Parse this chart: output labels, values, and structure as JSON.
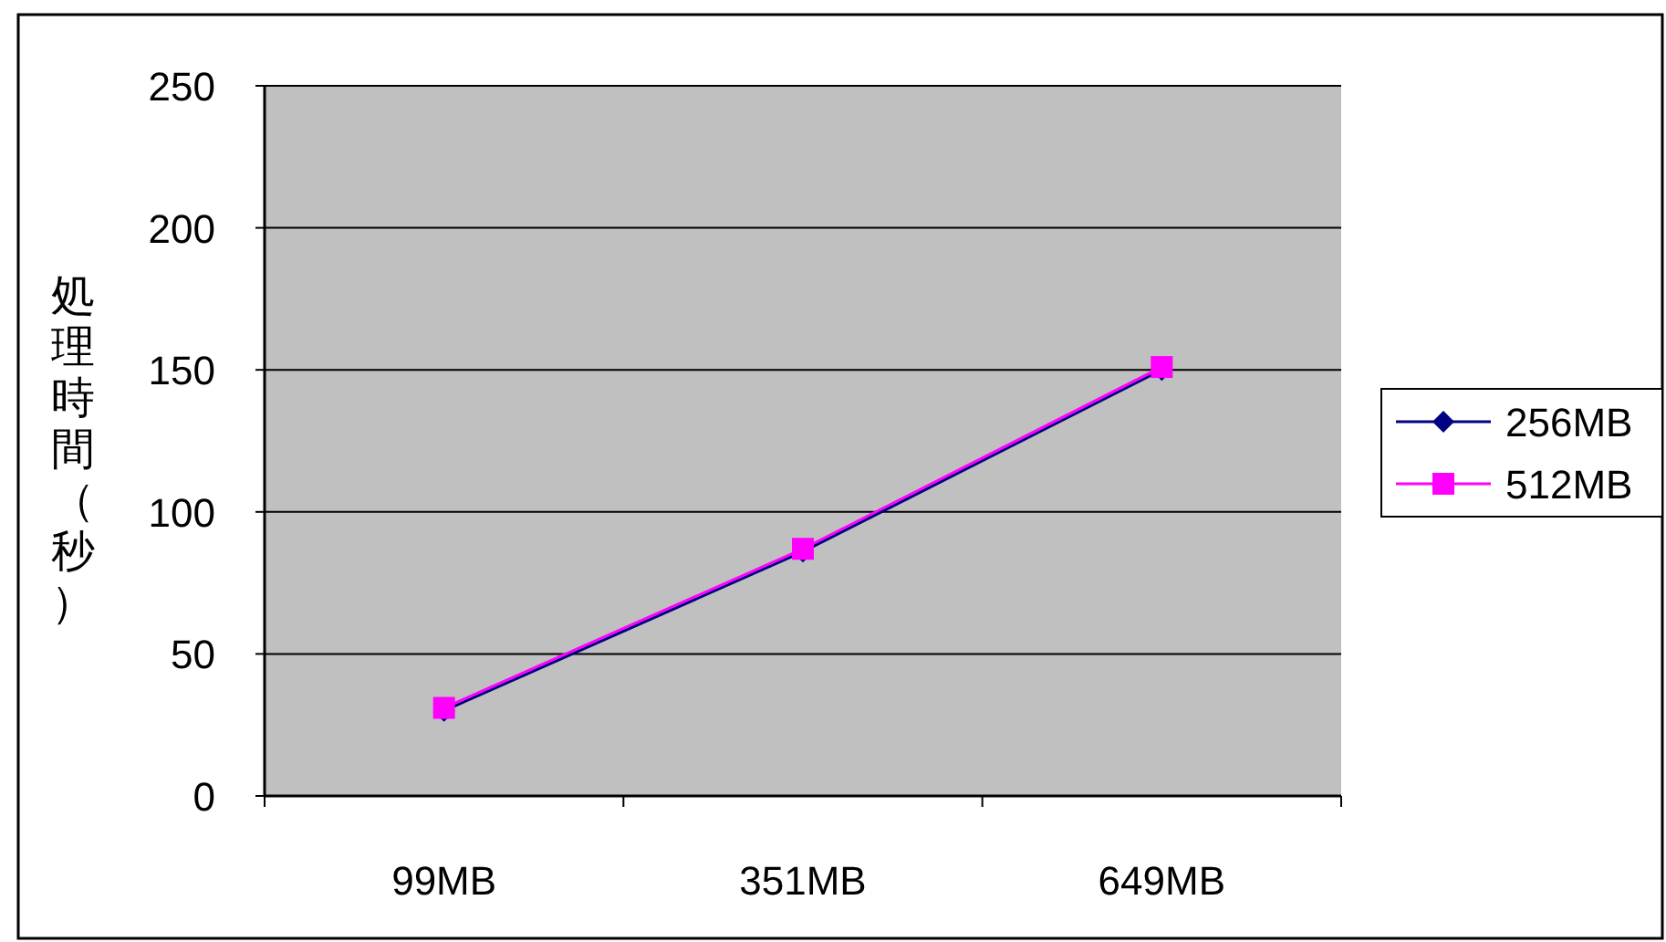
{
  "chart_data": {
    "type": "line",
    "ylabel": "処理時間（秒）",
    "categories": [
      "99MB",
      "351MB",
      "649MB"
    ],
    "series": [
      {
        "name": "256MB",
        "color": "#000080",
        "marker": "diamond",
        "values": [
          30,
          86,
          150
        ]
      },
      {
        "name": "512MB",
        "color": "#ff00ff",
        "marker": "square",
        "values": [
          31,
          87,
          151
        ]
      }
    ],
    "ylim": [
      0,
      250
    ],
    "yticks": [
      0,
      50,
      100,
      150,
      200,
      250
    ],
    "grid": "y",
    "legend": "right",
    "line_style": "solid"
  }
}
